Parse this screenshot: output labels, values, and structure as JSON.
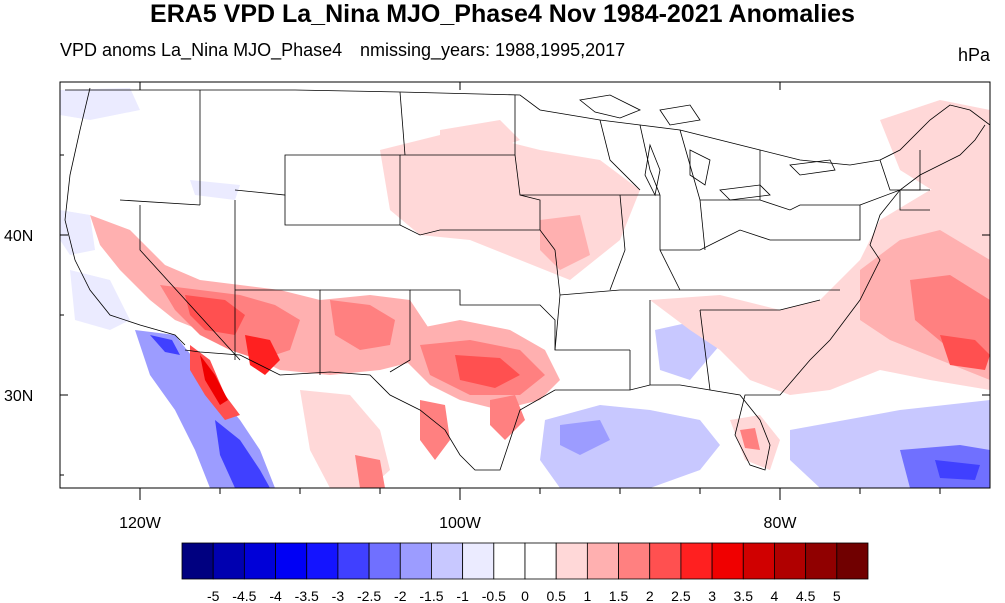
{
  "title": "ERA5 VPD La_Nina MJO_Phase4 Nov 1984-2021 Anomalies",
  "left_string": "VPD anoms La_Nina MJO_Phase4",
  "center_string": "nmissing_years: 1988,1995,2017",
  "units": "hPa",
  "axes": {
    "lat_labels": [
      "40N",
      "30N"
    ],
    "lon_labels": [
      "120W",
      "100W",
      "80W"
    ]
  },
  "colorbar": {
    "labels": [
      "-5",
      "-4.5",
      "-4",
      "-3.5",
      "-3",
      "-2.5",
      "-2",
      "-1.5",
      "-1",
      "-0.5",
      "0",
      "0.5",
      "1",
      "1.5",
      "2",
      "2.5",
      "3",
      "3.5",
      "4",
      "4.5",
      "5"
    ],
    "colors": [
      "#000080",
      "#0000b0",
      "#0000d8",
      "#0000f5",
      "#1414ff",
      "#4040ff",
      "#7070ff",
      "#9c9cff",
      "#c8c8ff",
      "#ebebff",
      "#ffffff",
      "#ffffff",
      "#ffd8d8",
      "#ffb0b0",
      "#ff8080",
      "#ff5050",
      "#ff2020",
      "#f00000",
      "#d00000",
      "#b00000",
      "#900000",
      "#700000"
    ]
  }
}
